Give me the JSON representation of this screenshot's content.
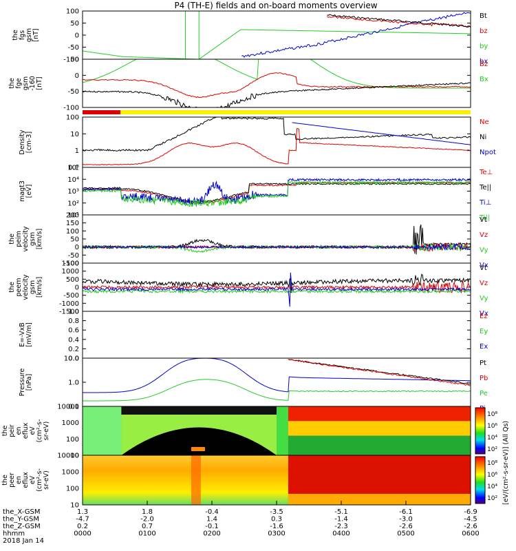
{
  "title": "P4 (TH-E) fields and on-board moments overview",
  "colors": {
    "black": "#000000",
    "red": "#dd0000",
    "green": "#22cc22",
    "blue": "#0000cc",
    "yellow": "#ffee00"
  },
  "chart_data": {
    "type": "line",
    "x_tick_rows": [
      {
        "label": "the_X-GSM",
        "values": [
          "1.3",
          "1.8",
          "-0.4",
          "-3.5",
          "-5.1",
          "-6.1",
          "-6.9"
        ]
      },
      {
        "label": "the_Y-GSM",
        "values": [
          "-4.7",
          "-2.0",
          "1.4",
          "0.3",
          "-1.4",
          "-3.0",
          "-4.5"
        ]
      },
      {
        "label": "the_Z-GSM",
        "values": [
          "0.2",
          "0.7",
          "-0.1",
          "-1.6",
          "-2.3",
          "-2.6",
          "-2.6"
        ]
      },
      {
        "label": "hhmm",
        "values": [
          "0000",
          "0100",
          "0200",
          "0300",
          "0400",
          "0500",
          "0600"
        ]
      },
      {
        "label": "2018 Jan 14",
        "values": []
      }
    ],
    "panels": [
      {
        "id": "fgs",
        "ylabel": [
          "the",
          "fgs",
          "gsm",
          "[nT]"
        ],
        "yticks": [
          "100",
          "50",
          "0",
          "-50",
          "-100"
        ],
        "legend": [
          {
            "text": "Bt",
            "color": "#000000"
          },
          {
            "text": "bz",
            "color": "#dd0000"
          },
          {
            "text": "by",
            "color": "#22cc22"
          },
          {
            "text": "bx",
            "color": "#0000cc"
          }
        ]
      },
      {
        "id": "fge",
        "ylabel": [
          "the",
          "fge",
          "gsm",
          "-160",
          "[nT]"
        ],
        "yticks": [
          "50",
          "0",
          "-50",
          "-100"
        ],
        "legend": [
          {
            "text": "Bz",
            "color": "#dd0000"
          },
          {
            "text": "Bx",
            "color": "#22cc22"
          }
        ]
      },
      {
        "id": "density",
        "ylabel": [
          "Density",
          "[cm-3]"
        ],
        "yticks": [
          "100",
          "10",
          "1",
          "0.1"
        ],
        "legend": [
          {
            "text": "Ne",
            "color": "#dd0000"
          },
          {
            "text": "Ni",
            "color": "#000000"
          },
          {
            "text": "Npot",
            "color": "#0000cc"
          }
        ]
      },
      {
        "id": "temp",
        "ylabel": [
          "magt3",
          "[eV]"
        ],
        "yticks": [
          "10⁵",
          "10⁴",
          "10³",
          "10²",
          "10¹"
        ],
        "legend": [
          {
            "text": "Te⊥",
            "color": "#dd0000"
          },
          {
            "text": "Te||",
            "color": "#000000"
          },
          {
            "text": "Ti⊥",
            "color": "#0000cc"
          },
          {
            "text": "Ti||",
            "color": "#22cc22"
          }
        ]
      },
      {
        "id": "peim",
        "ylabel": [
          "the",
          "peim",
          "velocity",
          "gsm",
          "[km/s]"
        ],
        "yticks": [
          "200",
          "150",
          "100",
          "50",
          "0",
          "-50",
          "-100"
        ],
        "legend": [
          {
            "text": "Vt",
            "color": "#000000"
          },
          {
            "text": "Vz",
            "color": "#dd0000"
          },
          {
            "text": "Vy",
            "color": "#22cc22"
          },
          {
            "text": "Vx",
            "color": "#0000cc"
          }
        ]
      },
      {
        "id": "peem",
        "ylabel": [
          "the",
          "peem",
          "velocity",
          "gsm",
          "[km/s]"
        ],
        "yticks": [
          "1500",
          "1000",
          "500",
          "0",
          "-500",
          "-1000",
          "-1500"
        ],
        "legend": [
          {
            "text": "Vt",
            "color": "#000000"
          },
          {
            "text": "Vz",
            "color": "#dd0000"
          },
          {
            "text": "Vy",
            "color": "#22cc22"
          },
          {
            "text": "Vx",
            "color": "#0000cc"
          }
        ]
      },
      {
        "id": "efield",
        "ylabel": [
          "E=-VxB",
          "[mV/m]"
        ],
        "yticks": [
          "1.0",
          "0.8",
          "0.6",
          "0.4",
          "0.2",
          "0.0"
        ],
        "legend": [
          {
            "text": "Ez",
            "color": "#dd0000"
          },
          {
            "text": "Ey",
            "color": "#22cc22"
          },
          {
            "text": "Ex",
            "color": "#0000cc"
          }
        ]
      },
      {
        "id": "pressure",
        "ylabel": [
          "Pressure",
          "[nPa]"
        ],
        "yticks": [
          "10.0",
          "1.0",
          "0.1"
        ],
        "legend": [
          {
            "text": "Pt",
            "color": "#000000"
          },
          {
            "text": "Pb",
            "color": "#dd0000"
          },
          {
            "text": "Pe",
            "color": "#22cc22"
          },
          {
            "text": "Pi",
            "color": "#0000cc"
          }
        ]
      },
      {
        "id": "peir",
        "ylabel": [
          "the",
          "peir",
          "en",
          "eflux",
          "eV",
          "(cm²-s-",
          "sr-eV)"
        ],
        "yticks": [
          "10000",
          "1000",
          "100",
          "10"
        ],
        "colorbar": [
          "10⁸",
          "10⁶",
          "10⁴",
          "10²"
        ]
      },
      {
        "id": "peer",
        "ylabel": [
          "the",
          "peer",
          "en",
          "eflux",
          "eV",
          "(cm²-s-",
          "sr-eV)"
        ],
        "yticks": [
          "10000",
          "1000",
          "100",
          "10"
        ],
        "colorbar": [
          "10⁸",
          "10⁶",
          "10⁴",
          "10²"
        ]
      }
    ],
    "colorbar_label": "[eV/(cm²-s-sr-eV)] (All Qs)"
  }
}
